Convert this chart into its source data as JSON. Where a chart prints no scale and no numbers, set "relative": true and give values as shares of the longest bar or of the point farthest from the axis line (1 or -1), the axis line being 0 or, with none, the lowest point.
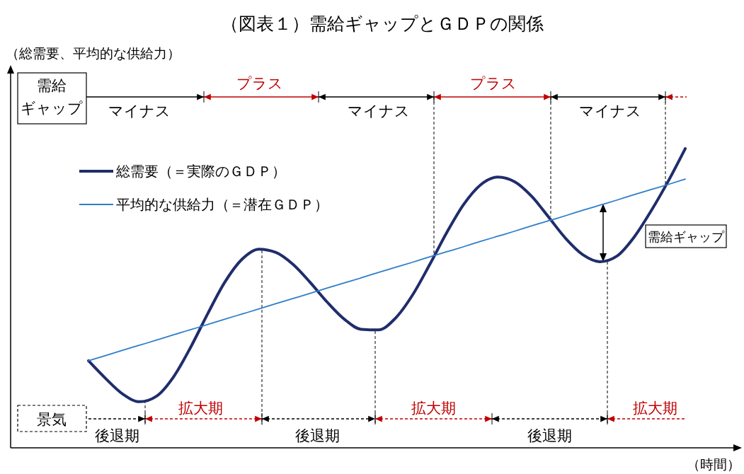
{
  "chart_data": {
    "type": "line",
    "title": "（図表１）需給ギャップとＧＤＰの関係",
    "xlabel": "（時間）",
    "relative": true,
    "legend": "top left",
    "categories": [
      null,
      null,
      null,
      null,
      null,
      null,
      null,
      null,
      null,
      null,
      null,
      null,
      null,
      null,
      null,
      null,
      null,
      null,
      null,
      null,
      null,
      null,
      null,
      null,
      null,
      null,
      null,
      null,
      null,
      null,
      null,
      null,
      null,
      null,
      null,
      null
    ],
    "series": [
      {
        "name": "総需要（＝実際のＧＤＰ）",
        "color": "#1f2d6b",
        "values": [
          0.291,
          0.232,
          0.18,
          0.154,
          0.173,
          0.238,
          0.337,
          0.449,
          0.554,
          0.63,
          0.664,
          0.653,
          0.613,
          0.553,
          0.487,
          0.43,
          0.396,
          0.394,
          0.433,
          0.51,
          0.611,
          0.718,
          0.813,
          0.879,
          0.905,
          0.889,
          0.84,
          0.77,
          0.699,
          0.645,
          0.622,
          0.641,
          0.704,
          0.792,
          0.891,
          1.0
        ]
      },
      {
        "name": "平均的な供給力（＝潜在ＧＤＰ）",
        "color": "#2e7ec8",
        "values": [
          0.291,
          0.308,
          0.326,
          0.343,
          0.36,
          0.378,
          0.395,
          0.412,
          0.43,
          0.447,
          0.464,
          0.482,
          0.499,
          0.516,
          0.534,
          0.551,
          0.568,
          0.586,
          0.603,
          0.62,
          0.638,
          0.655,
          0.672,
          0.69,
          0.707,
          0.724,
          0.742,
          0.759,
          0.776,
          0.794,
          0.811,
          0.828,
          0.846,
          0.863,
          0.88,
          0.898
        ]
      }
    ],
    "annotations": [
      "需給ギャップ",
      "マイナス",
      "プラス",
      "マイナス",
      "プラス",
      "マイナス",
      "需給ギャップ",
      "景気",
      "後退期",
      "拡大期",
      "後退期",
      "拡大期",
      "後退期",
      "拡大期",
      "（総需要、平均的な供給力）"
    ]
  }
}
